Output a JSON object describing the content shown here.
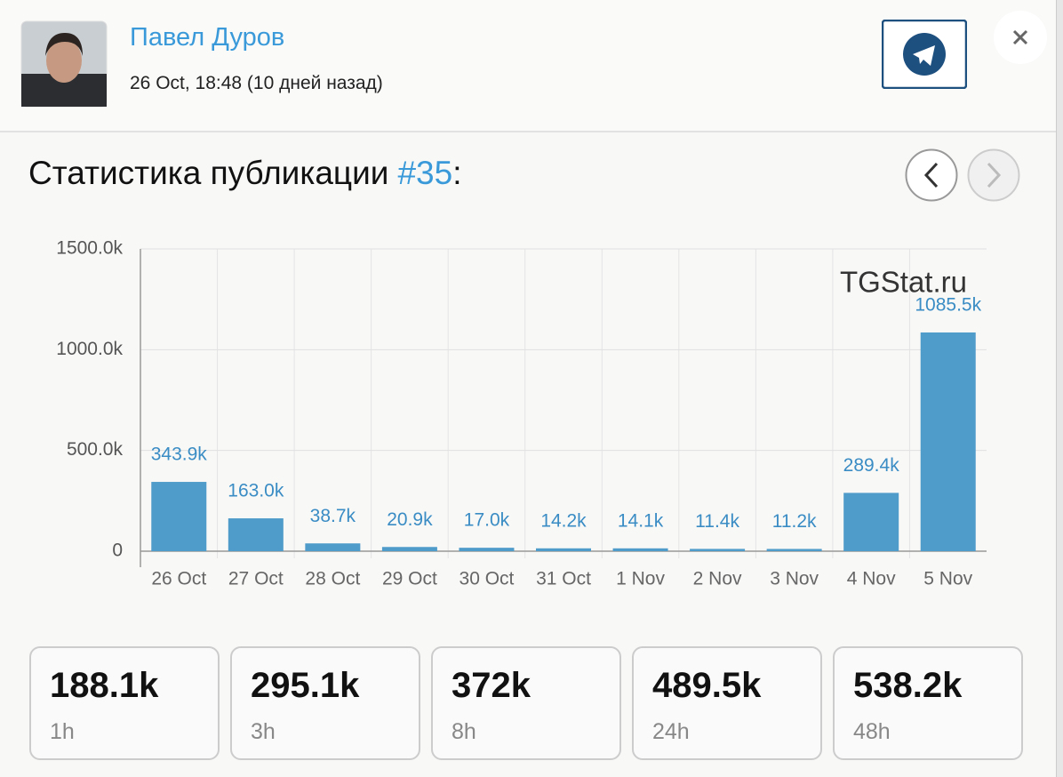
{
  "header": {
    "name": "Павел Дуров",
    "date": "26 Oct, 18:48 (10 дней назад)"
  },
  "stats_title": {
    "text": "Статистика публикации",
    "post_ref": "#35",
    "suffix": ":"
  },
  "chart_data": {
    "type": "bar",
    "watermark": "TGStat.ru",
    "categories": [
      "26 Oct",
      "27 Oct",
      "28 Oct",
      "29 Oct",
      "30 Oct",
      "31 Oct",
      "1 Nov",
      "2 Nov",
      "3 Nov",
      "4 Nov",
      "5 Nov"
    ],
    "values": [
      343.9,
      163.0,
      38.7,
      20.9,
      17.0,
      14.2,
      14.1,
      11.4,
      11.2,
      289.4,
      1085.5
    ],
    "value_labels": [
      "343.9k",
      "163.0k",
      "38.7k",
      "20.9k",
      "17.0k",
      "14.2k",
      "14.1k",
      "11.4k",
      "11.2k",
      "289.4k",
      "1085.5k"
    ],
    "color": "#4f9bc9",
    "label_color": "#3a8cc4",
    "ylim": [
      0,
      1500
    ],
    "yticks": [
      0,
      {
        "value": 500,
        "label": "500.0k"
      },
      {
        "value": 1000,
        "label": "1000.0k"
      },
      {
        "value": 1500,
        "label": "1500.0k"
      }
    ],
    "grid": true
  },
  "cards": [
    {
      "value": "188.1k",
      "label": "1h"
    },
    {
      "value": "295.1k",
      "label": "3h"
    },
    {
      "value": "372k",
      "label": "8h"
    },
    {
      "value": "489.5k",
      "label": "24h"
    },
    {
      "value": "538.2k",
      "label": "48h"
    }
  ]
}
